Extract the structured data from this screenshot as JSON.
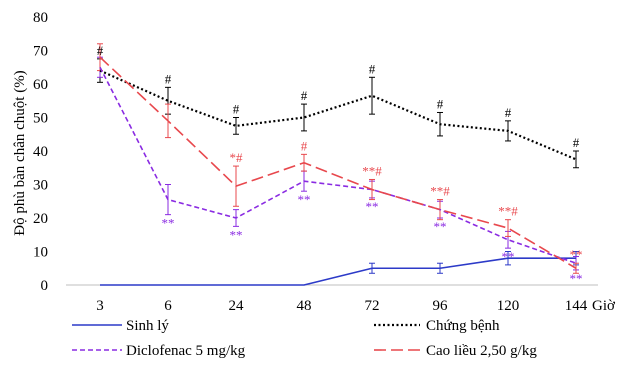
{
  "chart_data": {
    "type": "line",
    "title": "",
    "ylabel": "Độ phù bàn chân chuột (%)",
    "xlabel": "",
    "x_unit": "Giờ",
    "categories": [
      "3",
      "6",
      "24",
      "48",
      "72",
      "96",
      "120",
      "144"
    ],
    "ylim": [
      0,
      80
    ],
    "yticks": [
      "0",
      "10",
      "20",
      "30",
      "40",
      "50",
      "60",
      "70",
      "80"
    ],
    "grid": false,
    "legend_position": "bottom",
    "series": [
      {
        "name": "Sinh lý",
        "color": "#2c3ac8",
        "style": "solid",
        "values": [
          0,
          0,
          0,
          0,
          5,
          5,
          8,
          8
        ],
        "errors": [
          0,
          0,
          0,
          0,
          1.5,
          1.5,
          2,
          2
        ],
        "markers": [
          "",
          "",
          "",
          "",
          "",
          "",
          "",
          ""
        ]
      },
      {
        "name": "Chứng bệnh",
        "color": "#000000",
        "style": "dotted",
        "values": [
          64,
          55,
          47.5,
          50,
          56.5,
          48,
          46,
          37.5
        ],
        "errors": [
          3.5,
          4,
          2.5,
          4,
          5.5,
          3.5,
          3,
          2.5
        ],
        "markers": [
          "#",
          "#",
          "#",
          "#",
          "#",
          "#",
          "#",
          "#"
        ]
      },
      {
        "name": "Diclofenac 5 mg/kg",
        "color": "#8a2be2",
        "style": "short-dash",
        "values": [
          65,
          25.5,
          20,
          31,
          28.5,
          22.5,
          13.5,
          6.5
        ],
        "errors": [
          3,
          4.5,
          2.5,
          3,
          2.5,
          2.5,
          2.5,
          2
        ],
        "markers": [
          "",
          "**",
          "**",
          "**",
          "**",
          "**",
          "**",
          "**"
        ]
      },
      {
        "name": "Cao liều 2,50 g/kg",
        "color": "#e8484d",
        "style": "long-dash",
        "values": [
          68,
          49,
          29.5,
          36.5,
          28.5,
          22.5,
          17,
          5
        ],
        "errors": [
          4,
          5,
          6,
          2.5,
          3,
          3,
          2.5,
          1.5
        ],
        "markers": [
          "",
          "",
          "*#",
          "#",
          "**#",
          "**#",
          "**#",
          "**"
        ]
      }
    ]
  }
}
